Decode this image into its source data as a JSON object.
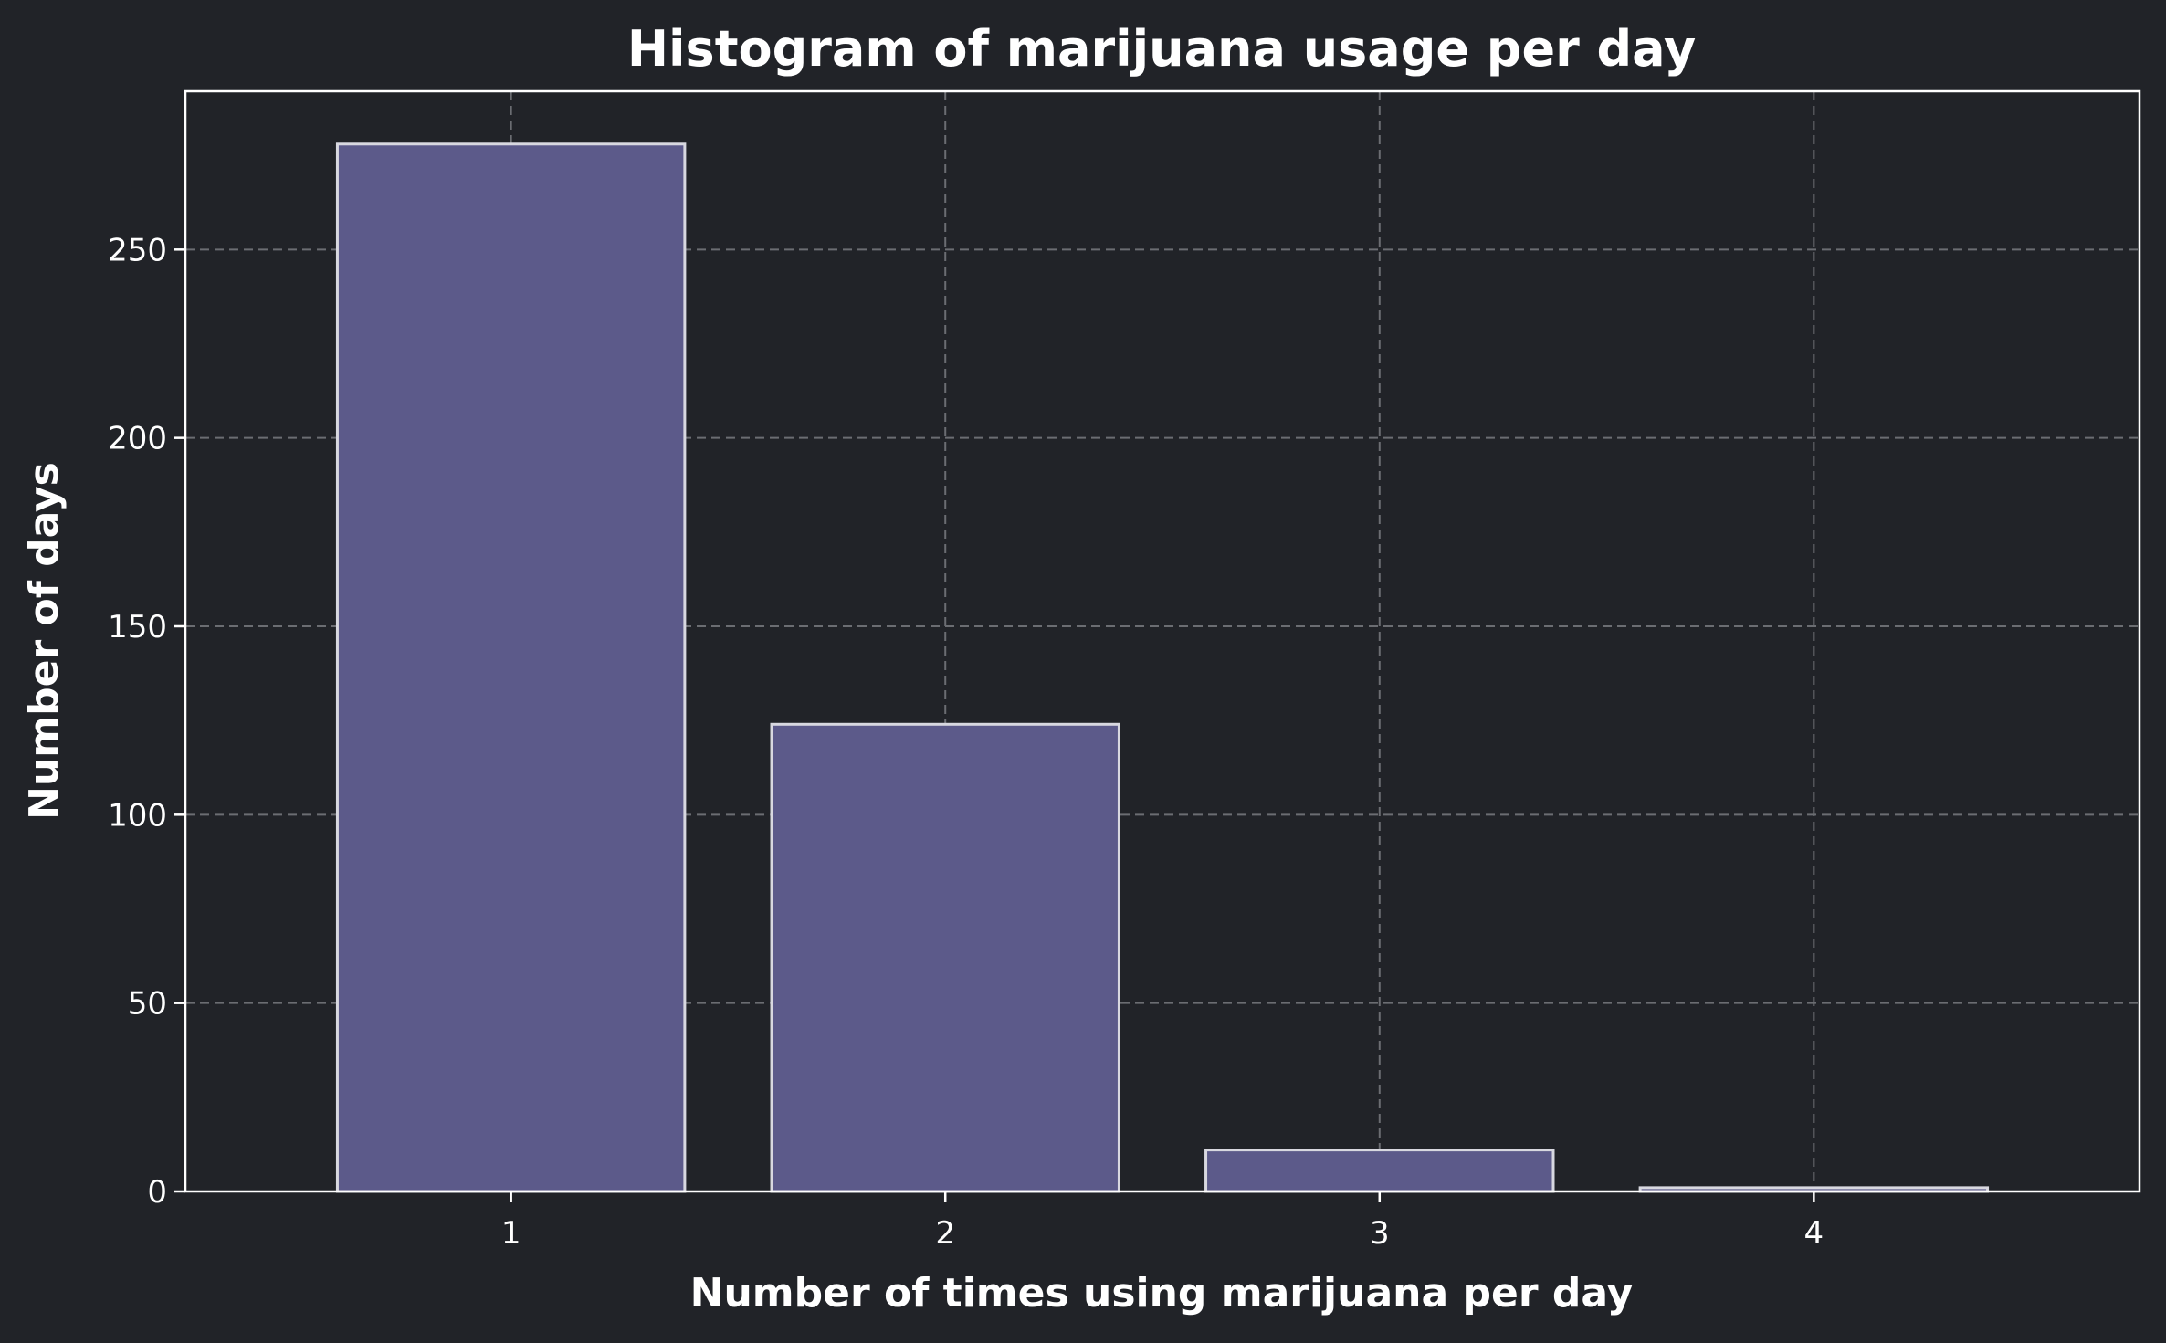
{
  "chart_data": {
    "type": "bar",
    "title": "Histogram of marijuana usage per day",
    "xlabel": "Number of times using marijuana per day",
    "ylabel": "Number of days",
    "categories": [
      "1",
      "2",
      "3",
      "4"
    ],
    "x": [
      1,
      2,
      3,
      4
    ],
    "values": [
      278,
      124,
      11,
      1
    ],
    "ylim": [
      0,
      292
    ],
    "xlim": [
      0.25,
      4.75
    ],
    "yticks": [
      0,
      50,
      100,
      150,
      200,
      250
    ],
    "bar_width": 0.8,
    "grid": true,
    "colors": {
      "background": "#212328",
      "plot_background": "#212328",
      "bar_fill": "#5c5a8a",
      "bar_edge": "#d8d8e0",
      "text": "#ffffff",
      "grid": "#6b6d72"
    }
  }
}
